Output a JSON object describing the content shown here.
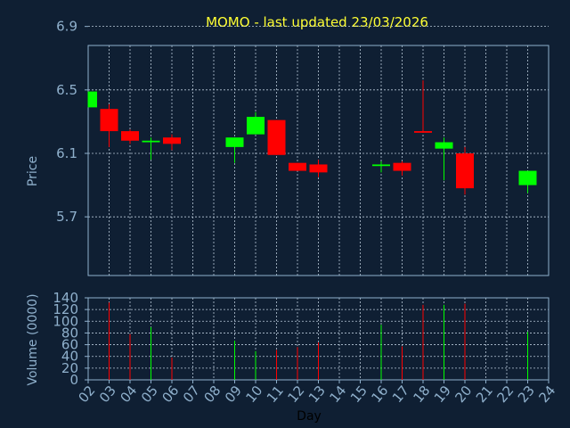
{
  "chart_data": {
    "type": "candlestick",
    "title": "MOMO - last updated 23/03/2026",
    "ylabel": "Price",
    "volume_ylabel": "Volume (0000)",
    "xlabel": "Day",
    "price_ylim": [
      5.33,
      6.78
    ],
    "price_ticks": [
      "5.7",
      "6.1",
      "6.5",
      "6.9"
    ],
    "volume_ylim": [
      0,
      140
    ],
    "volume_ticks": [
      "0",
      "20",
      "40",
      "60",
      "80",
      "100",
      "120",
      "140"
    ],
    "x_ticks": [
      "02",
      "03",
      "04",
      "05",
      "06",
      "07",
      "08",
      "09",
      "10",
      "11",
      "12",
      "13",
      "14",
      "15",
      "16",
      "17",
      "18",
      "19",
      "20",
      "21",
      "22",
      "23",
      "24"
    ],
    "up_color": "#00ff00",
    "down_color": "#ff0000",
    "candles": [
      {
        "day": 2,
        "open": 6.39,
        "close": 6.49,
        "high": 6.49,
        "low": 6.39,
        "volume": 0
      },
      {
        "day": 3,
        "open": 6.38,
        "close": 6.24,
        "high": 6.41,
        "low": 6.14,
        "volume": 132
      },
      {
        "day": 4,
        "open": 6.24,
        "close": 6.18,
        "high": 6.25,
        "low": 6.16,
        "volume": 78
      },
      {
        "day": 5,
        "open": 6.17,
        "close": 6.18,
        "high": 6.2,
        "low": 6.06,
        "volume": 90
      },
      {
        "day": 6,
        "open": 6.2,
        "close": 6.16,
        "high": 6.22,
        "low": 6.12,
        "volume": 38
      },
      {
        "day": 9,
        "open": 6.14,
        "close": 6.2,
        "high": 6.2,
        "low": 6.04,
        "volume": 67
      },
      {
        "day": 10,
        "open": 6.22,
        "close": 6.33,
        "high": 6.36,
        "low": 6.22,
        "volume": 49
      },
      {
        "day": 11,
        "open": 6.31,
        "close": 6.09,
        "high": 6.31,
        "low": 6.09,
        "volume": 51
      },
      {
        "day": 12,
        "open": 6.04,
        "close": 5.99,
        "high": 6.04,
        "low": 5.99,
        "volume": 56
      },
      {
        "day": 13,
        "open": 6.03,
        "close": 5.98,
        "high": 6.06,
        "low": 5.95,
        "volume": 64
      },
      {
        "day": 16,
        "open": 6.02,
        "close": 6.03,
        "high": 6.05,
        "low": 5.98,
        "volume": 94
      },
      {
        "day": 17,
        "open": 6.04,
        "close": 5.99,
        "high": 6.05,
        "low": 5.96,
        "volume": 57
      },
      {
        "day": 18,
        "open": 6.24,
        "close": 6.23,
        "high": 6.56,
        "low": 6.23,
        "volume": 128
      },
      {
        "day": 19,
        "open": 6.13,
        "close": 6.17,
        "high": 6.2,
        "low": 5.93,
        "volume": 128
      },
      {
        "day": 20,
        "open": 6.1,
        "close": 5.88,
        "high": 6.14,
        "low": 5.84,
        "volume": 130
      },
      {
        "day": 23,
        "open": 5.9,
        "close": 5.99,
        "high": 5.99,
        "low": 5.85,
        "volume": 82
      }
    ]
  }
}
